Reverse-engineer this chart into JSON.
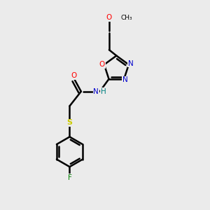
{
  "bg_color": "#ebebeb",
  "colors": {
    "O": "#ff0000",
    "N": "#0000cd",
    "S": "#cccc00",
    "F": "#008000",
    "H": "#008080",
    "C": "#000000"
  },
  "figsize": [
    3.0,
    3.0
  ],
  "dpi": 100
}
